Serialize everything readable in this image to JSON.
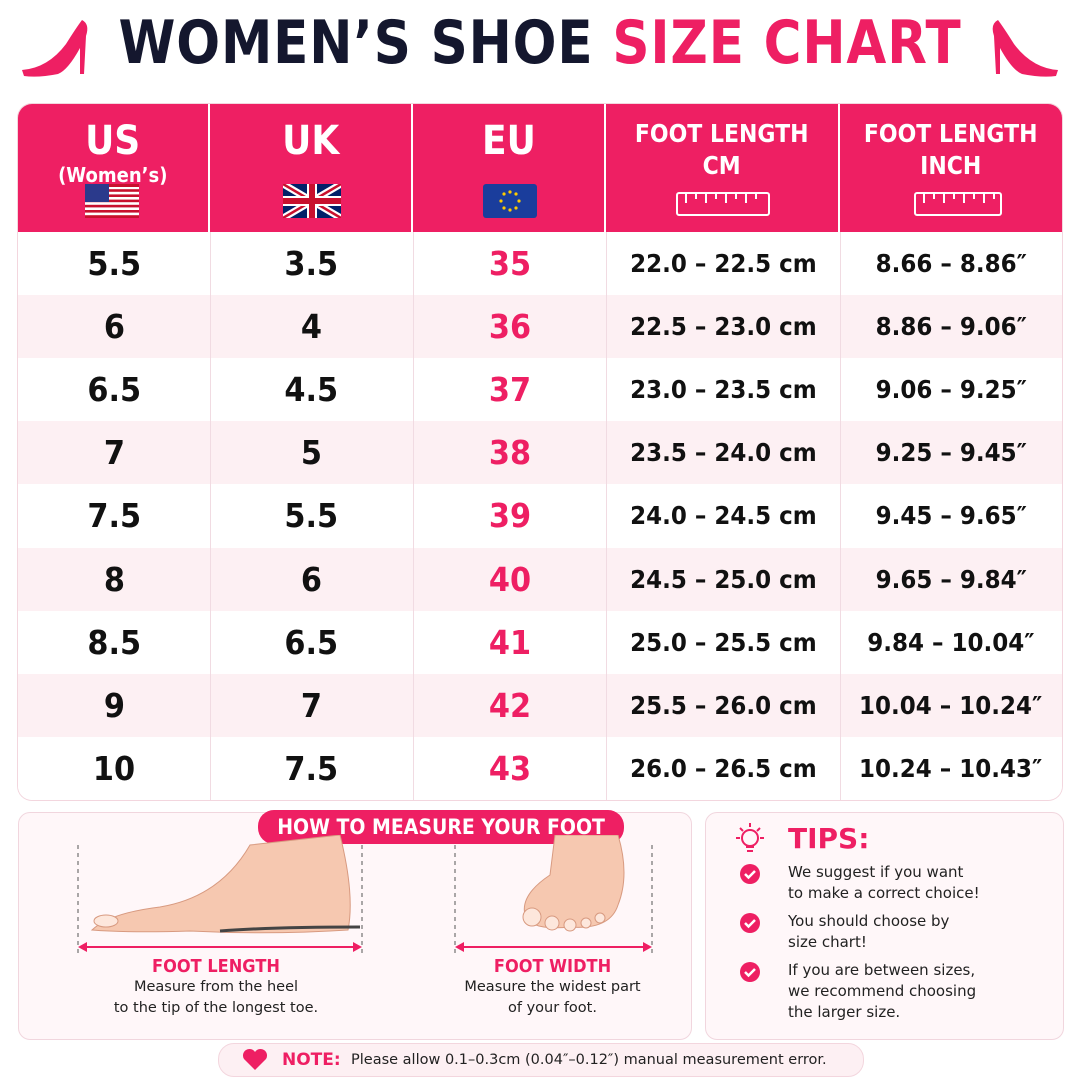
{
  "header": {
    "title_main": "WOMEN’S SHOE",
    "title_accent": "SIZE CHART"
  },
  "table": {
    "columns": [
      [
        "US",
        "(Women’s)"
      ],
      [
        "UK"
      ],
      [
        "EU"
      ],
      [
        "FOOT LENGTH",
        "CM"
      ],
      [
        "FOOT LENGTH",
        "INCH"
      ]
    ],
    "rows": [
      [
        "5.5",
        "3.5",
        "35",
        "22.0 – 22.5 cm",
        "8.66 – 8.86″"
      ],
      [
        "6",
        "4",
        "36",
        "22.5 – 23.0 cm",
        "8.86 – 9.06″"
      ],
      [
        "6.5",
        "4.5",
        "37",
        "23.0 – 23.5 cm",
        "9.06 – 9.25″"
      ],
      [
        "7",
        "5",
        "38",
        "23.5 – 24.0 cm",
        "9.25 – 9.45″"
      ],
      [
        "7.5",
        "5.5",
        "39",
        "24.0 – 24.5 cm",
        "9.45 – 9.65″"
      ],
      [
        "8",
        "6",
        "40",
        "24.5 – 25.0 cm",
        "9.65 – 9.84″"
      ],
      [
        "8.5",
        "6.5",
        "41",
        "25.0 – 25.5 cm",
        "9.84 – 10.04″"
      ],
      [
        "9",
        "7",
        "42",
        "25.5 – 26.0 cm",
        "10.04 – 10.24″"
      ],
      [
        "10",
        "7.5",
        "43",
        "26.0 – 26.5 cm",
        "10.24 – 10.43″"
      ]
    ]
  },
  "measure": {
    "title": "HOW TO MEASURE YOUR FOOT",
    "length": {
      "label": "FOOT LENGTH",
      "text": [
        "Measure from the heel",
        "to the tip of the longest toe."
      ]
    },
    "width": {
      "label": "FOOT WIDTH",
      "text": [
        "Measure the widest part",
        "of your foot."
      ]
    }
  },
  "tips": {
    "title": "TIPS:",
    "items": [
      [
        "We suggest if you want",
        "to make a correct choice!"
      ],
      [
        "You should choose by",
        "size chart!"
      ],
      [
        "If you are between sizes,",
        "we recommend choosing",
        "the larger size."
      ]
    ]
  },
  "note": {
    "label": "NOTE:",
    "text": "Please allow 0.1–0.3cm (0.04″–0.12″) manual measurement error."
  }
}
